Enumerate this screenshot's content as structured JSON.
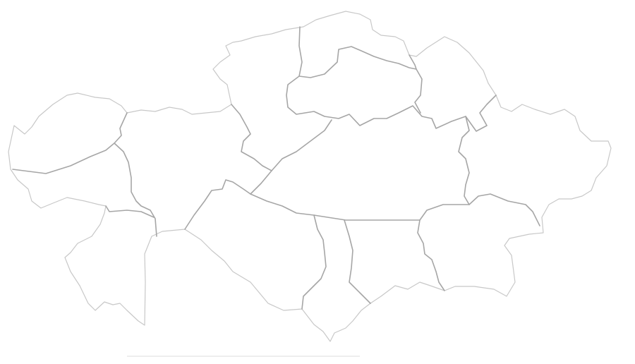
{
  "map": {
    "region_count": 14,
    "colors": {
      "background": "#ffffff",
      "outer_border": "#c8c8c8",
      "inner_border": "#a6a6a6"
    }
  }
}
